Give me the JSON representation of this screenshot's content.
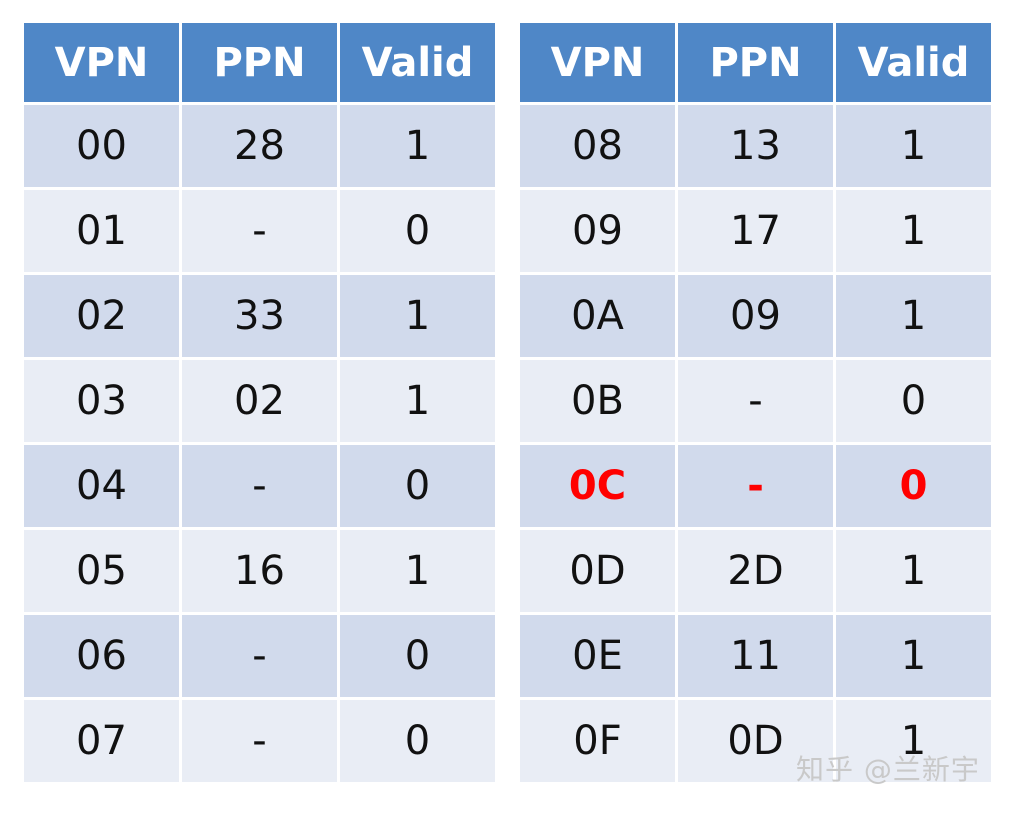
{
  "tables": [
    {
      "headers": [
        "VPN",
        "PPN",
        "Valid"
      ],
      "rows": [
        {
          "vpn": "00",
          "ppn": "28",
          "valid": "1"
        },
        {
          "vpn": "01",
          "ppn": "-",
          "valid": "0"
        },
        {
          "vpn": "02",
          "ppn": "33",
          "valid": "1"
        },
        {
          "vpn": "03",
          "ppn": "02",
          "valid": "1"
        },
        {
          "vpn": "04",
          "ppn": "-",
          "valid": "0"
        },
        {
          "vpn": "05",
          "ppn": "16",
          "valid": "1"
        },
        {
          "vpn": "06",
          "ppn": "-",
          "valid": "0"
        },
        {
          "vpn": "07",
          "ppn": "-",
          "valid": "0"
        }
      ]
    },
    {
      "headers": [
        "VPN",
        "PPN",
        "Valid"
      ],
      "rows": [
        {
          "vpn": "08",
          "ppn": "13",
          "valid": "1"
        },
        {
          "vpn": "09",
          "ppn": "17",
          "valid": "1"
        },
        {
          "vpn": "0A",
          "ppn": "09",
          "valid": "1"
        },
        {
          "vpn": "0B",
          "ppn": "-",
          "valid": "0"
        },
        {
          "vpn": "0C",
          "ppn": "-",
          "valid": "0",
          "highlighted": true
        },
        {
          "vpn": "0D",
          "ppn": "2D",
          "valid": "1"
        },
        {
          "vpn": "0E",
          "ppn": "11",
          "valid": "1"
        },
        {
          "vpn": "0F",
          "ppn": "0D",
          "valid": "1"
        }
      ]
    }
  ],
  "colors": {
    "header_background": "#4f87c7",
    "header_text": "#ffffff",
    "row_band_dark": "#d1daec",
    "row_band_light": "#e9edf5",
    "highlight_text": "#ff0000"
  },
  "watermark": "知乎 @兰新宇"
}
